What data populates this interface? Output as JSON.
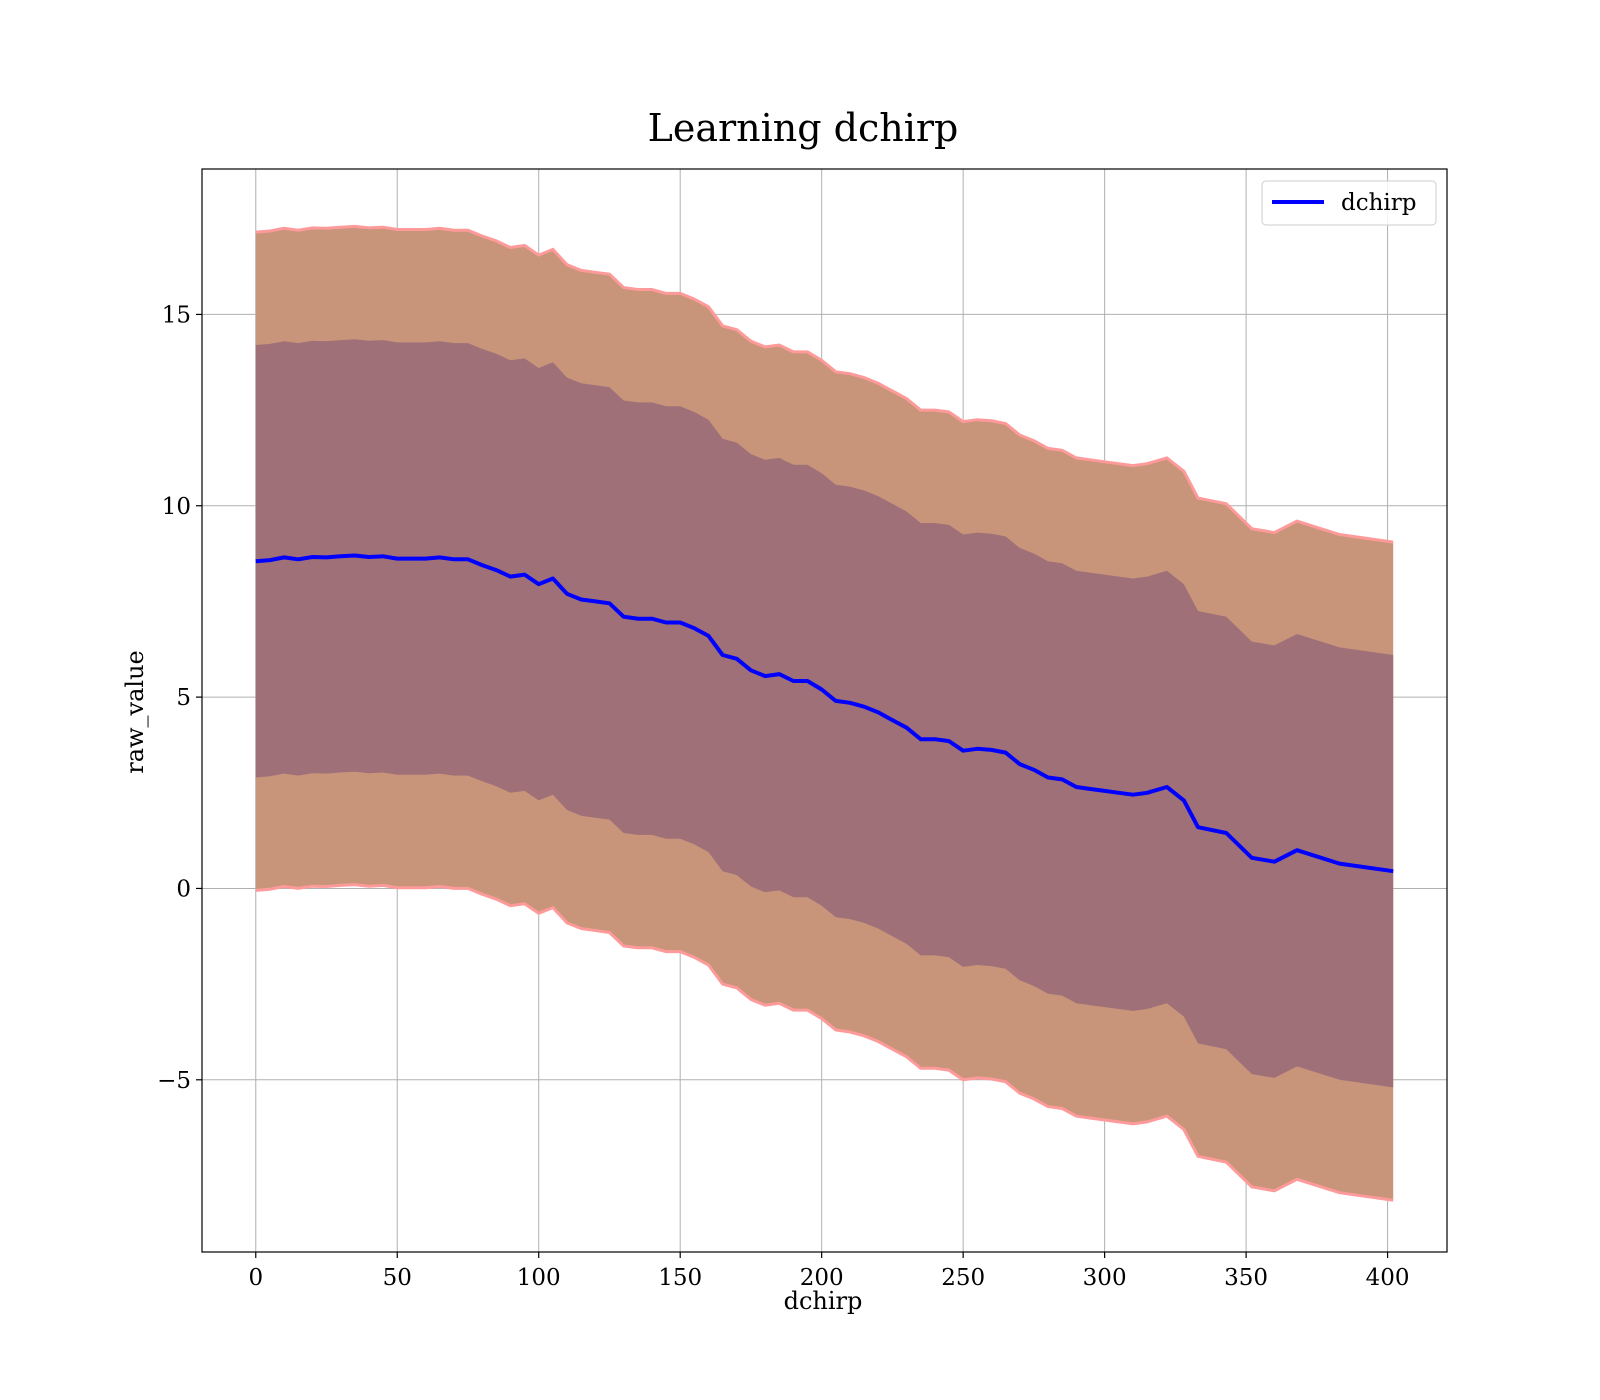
{
  "chart_data": {
    "type": "line",
    "title": "Learning dchirp",
    "xlabel": "dchirp",
    "ylabel": "raw_value",
    "xlim": [
      -19,
      421
    ],
    "ylim": [
      -9.5,
      18.8
    ],
    "xticks": [
      0,
      50,
      100,
      150,
      200,
      250,
      300,
      350,
      400
    ],
    "yticks": [
      -5,
      0,
      5,
      10,
      15
    ],
    "xtick_labels": [
      "0",
      "50",
      "100",
      "150",
      "200",
      "250",
      "300",
      "350",
      "400"
    ],
    "ytick_labels": [
      "−5",
      "0",
      "5",
      "10",
      "15"
    ],
    "grid": true,
    "legend": {
      "position": "top-right",
      "entries": [
        "dchirp"
      ]
    },
    "colors": {
      "line": "#0000ff",
      "outer_band": "#c8957a",
      "inner_band": "#a07078",
      "band_edge": "#ff9a9a"
    },
    "series": [
      {
        "name": "dchirp",
        "x": [
          0,
          5,
          10,
          15,
          20,
          25,
          30,
          35,
          40,
          45,
          50,
          55,
          60,
          65,
          70,
          75,
          80,
          85,
          90,
          95,
          100,
          105,
          110,
          115,
          120,
          125,
          130,
          135,
          140,
          145,
          150,
          155,
          160,
          165,
          170,
          175,
          180,
          185,
          190,
          195,
          200,
          205,
          210,
          215,
          220,
          225,
          230,
          235,
          240,
          245,
          250,
          255,
          260,
          265,
          270,
          275,
          280,
          285,
          290,
          295,
          300,
          305,
          310,
          315,
          322,
          328,
          333,
          343,
          352,
          360,
          368,
          383,
          402
        ],
        "y": [
          8.55,
          8.58,
          8.65,
          8.6,
          8.66,
          8.65,
          8.68,
          8.7,
          8.66,
          8.68,
          8.62,
          8.62,
          8.62,
          8.65,
          8.6,
          8.6,
          8.45,
          8.32,
          8.15,
          8.2,
          7.95,
          8.1,
          7.7,
          7.55,
          7.5,
          7.45,
          7.1,
          7.05,
          7.05,
          6.95,
          6.95,
          6.8,
          6.6,
          6.1,
          6.0,
          5.7,
          5.55,
          5.6,
          5.42,
          5.42,
          5.2,
          4.9,
          4.85,
          4.75,
          4.6,
          4.4,
          4.2,
          3.9,
          3.9,
          3.85,
          3.6,
          3.65,
          3.62,
          3.55,
          3.25,
          3.1,
          2.9,
          2.85,
          2.65,
          2.6,
          2.55,
          2.5,
          2.45,
          2.5,
          2.65,
          2.3,
          1.6,
          1.45,
          0.8,
          0.7,
          1.0,
          0.65,
          0.45
        ]
      }
    ],
    "bands": [
      {
        "role": "outer",
        "width": 8.6
      },
      {
        "role": "inner",
        "width": 5.65
      }
    ]
  }
}
